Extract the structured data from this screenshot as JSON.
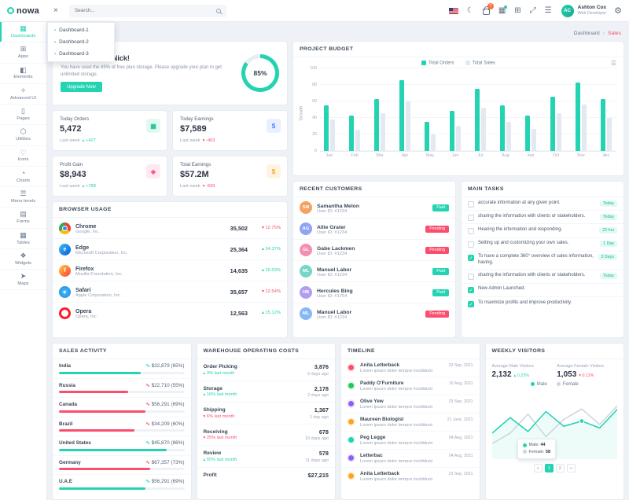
{
  "colors": {
    "accent": "#23d3b1",
    "danger": "#fb4d6d",
    "blue": "#4c84ff",
    "orange": "#ffa21d",
    "purple": "#8e5ff5",
    "green": "#22c55e"
  },
  "glyphs": {
    "close": "×",
    "menu": "☰",
    "chevron": "›",
    "up": "▴",
    "down": "▾",
    "trend": "∿",
    "check": "✓",
    "settings": "⚙"
  },
  "topbar": {
    "logo_text": "nowa",
    "search_placeholder": "Search...",
    "user_name": "Ashton Cox",
    "user_role": "Web Developer",
    "user_initials": "AC",
    "icons": [
      {
        "name": "us-flag-icon",
        "glyph": ""
      },
      {
        "name": "moon-icon",
        "glyph": "☾"
      },
      {
        "name": "cart-icon",
        "glyph": "",
        "badge": "7"
      },
      {
        "name": "grid-icon",
        "glyph": "▦",
        "dot": true
      },
      {
        "name": "apps-icon",
        "glyph": "⊞"
      },
      {
        "name": "fullscreen-icon",
        "glyph": "⤢"
      },
      {
        "name": "filter-icon",
        "glyph": "☰"
      }
    ]
  },
  "sidebar": {
    "items": [
      {
        "label": "Dashboards",
        "icon": "dashboard-icon",
        "glyph": "▦",
        "active": true
      },
      {
        "label": "Apps",
        "icon": "apps-icon",
        "glyph": "⊞",
        "active": false
      },
      {
        "label": "Elements",
        "icon": "elements-icon",
        "glyph": "◧",
        "active": false
      },
      {
        "label": "Advanced UI",
        "icon": "advanced-ui-icon",
        "glyph": "✧",
        "active": false
      },
      {
        "label": "Pages",
        "icon": "pages-icon",
        "glyph": "▯",
        "active": false
      },
      {
        "label": "Utilities",
        "icon": "utilities-icon",
        "glyph": "⬡",
        "active": false
      },
      {
        "label": "Icons",
        "icon": "icons-icon",
        "glyph": "♡",
        "active": false
      },
      {
        "label": "Charts",
        "icon": "charts-icon",
        "glyph": "◔",
        "active": false
      },
      {
        "label": "Menu-levels",
        "icon": "menu-levels-icon",
        "glyph": "☰",
        "active": false
      },
      {
        "label": "Forms",
        "icon": "forms-icon",
        "glyph": "▤",
        "active": false
      },
      {
        "label": "Tables",
        "icon": "tables-icon",
        "glyph": "▦",
        "active": false
      },
      {
        "label": "Widgets",
        "icon": "widgets-icon",
        "glyph": "❖",
        "active": false
      },
      {
        "label": "Maps",
        "icon": "maps-icon",
        "glyph": "➤",
        "active": false
      }
    ]
  },
  "dashboards_menu": {
    "items": [
      "Dashboard-1",
      "Dashboard-2",
      "Dashboard-3"
    ]
  },
  "breadcrumb": {
    "parent": "Dashboard",
    "current": "Sales"
  },
  "welcome": {
    "title": "Welcome Back Nick!",
    "body": "You have used the 85% of free plan storage. Please upgrade your plan to get unlimited storage.",
    "button": "Upgrade Now",
    "storage_pct": 85,
    "storage_label": "85%"
  },
  "stats": [
    {
      "title": "Today Orders",
      "value": "5,472",
      "period": "Last week",
      "change": "+427",
      "dir": "up",
      "icon": "calendar-icon",
      "glyph": "▦",
      "tint": "green"
    },
    {
      "title": "Today Earnings",
      "value": "$7,589",
      "period": "Last week",
      "change": "-453",
      "dir": "down",
      "icon": "dollar-icon",
      "glyph": "$",
      "tint": "blue"
    },
    {
      "title": "Profit Gain",
      "value": "$8,943",
      "period": "Last week",
      "change": "+788",
      "dir": "up",
      "icon": "wallet-icon",
      "glyph": "◆",
      "tint": "pink"
    },
    {
      "title": "Total Earnings",
      "value": "$57.2M",
      "period": "Last week",
      "change": "-693",
      "dir": "down",
      "icon": "money-icon",
      "glyph": "$",
      "tint": "orange"
    }
  ],
  "browser_usage": {
    "title": "BROWSER USAGE",
    "rows": [
      {
        "name": "Chrome",
        "company": "Google, Inc.",
        "value": "35,502",
        "change": "12.75%",
        "dir": "down"
      },
      {
        "name": "Edge",
        "company": "Microsoft Corporation, Inc.",
        "value": "25,364",
        "change": "24.37%",
        "dir": "up"
      },
      {
        "name": "Firefox",
        "company": "Mozilla Foundation, Inc.",
        "value": "14,635",
        "change": "15.63%",
        "dir": "up"
      },
      {
        "name": "Safari",
        "company": "Apple Corporation, Inc.",
        "value": "35,657",
        "change": "12.54%",
        "dir": "down"
      },
      {
        "name": "Opera",
        "company": "Opera, Inc.",
        "value": "12,563",
        "change": "15.12%",
        "dir": "up"
      }
    ]
  },
  "project_budget": {
    "title": "PROJECT BUDGET"
  },
  "recent_customers": {
    "title": "RECENT CUSTOMERS",
    "rows": [
      {
        "name": "Samantha Melon",
        "meta": "User ID: #1234",
        "status": "Paid",
        "initials": "SM"
      },
      {
        "name": "Allie Grater",
        "meta": "User ID: #1234",
        "status": "Pending",
        "initials": "AG"
      },
      {
        "name": "Gabe Lackmen",
        "meta": "User ID: #1234",
        "status": "Pending",
        "initials": "GL"
      },
      {
        "name": "Manuel Labor",
        "meta": "User ID: #1234",
        "status": "Paid",
        "initials": "ML"
      },
      {
        "name": "Hercules Bing",
        "meta": "User ID: #1754",
        "status": "Paid",
        "initials": "HB"
      },
      {
        "name": "Manuel Labor",
        "meta": "User ID: #1234",
        "status": "Pending",
        "initials": "ML"
      }
    ]
  },
  "main_tasks": {
    "title": "MAIN TASKS",
    "rows": [
      {
        "text": "accurate information at any given point.",
        "badge": "Today",
        "checked": false
      },
      {
        "text": "sharing the information with clients or stakeholders.",
        "badge": "Today",
        "checked": false
      },
      {
        "text": "Hearing the information and responding.",
        "badge": "22 hrs",
        "checked": false
      },
      {
        "text": "Setting up and customizing your own sales.",
        "badge": "1 Day",
        "checked": false
      },
      {
        "text": "To have a complete 360° overview of sales information, having.",
        "badge": "2 Days",
        "checked": true
      },
      {
        "text": "sharing the information with clients or stakeholders.",
        "badge": "Today",
        "checked": false
      },
      {
        "text": "New Admin Launched.",
        "badge": "",
        "checked": true
      },
      {
        "text": "To maximize profits and improve productivity.",
        "badge": "",
        "checked": true
      }
    ]
  },
  "sales_activity": {
    "title": "SALES ACTIVITY",
    "rows": [
      {
        "country": "India",
        "amount": "$32,879 (65%)",
        "pct": 65,
        "color": "teal"
      },
      {
        "country": "Russia",
        "amount": "$22,710 (55%)",
        "pct": 55,
        "color": "red"
      },
      {
        "country": "Canada",
        "amount": "$56,291 (69%)",
        "pct": 69,
        "color": "red"
      },
      {
        "country": "Brazil",
        "amount": "$34,209 (60%)",
        "pct": 60,
        "color": "red"
      },
      {
        "country": "United States",
        "amount": "$45,870 (86%)",
        "pct": 86,
        "color": "teal"
      },
      {
        "country": "Germany",
        "amount": "$67,357 (73%)",
        "pct": 73,
        "color": "red"
      },
      {
        "country": "U.A.E",
        "amount": "$56,291 (69%)",
        "pct": 69,
        "color": "teal"
      }
    ]
  },
  "warehouse": {
    "title": "WAREHOUSE OPERATING COSTS",
    "rows": [
      {
        "label": "Order Picking",
        "sub": "3% last month",
        "dir": "up",
        "value": "3,876",
        "ago": "5 days ago"
      },
      {
        "label": "Storage",
        "sub": "16% last month",
        "dir": "up",
        "value": "2,178",
        "ago": "2 days ago"
      },
      {
        "label": "Shipping",
        "sub": "6% last month",
        "dir": "down",
        "value": "1,367",
        "ago": "1 day ago"
      },
      {
        "label": "Receiving",
        "sub": "25% last month",
        "dir": "down",
        "value": "678",
        "ago": "10 days ago"
      },
      {
        "label": "Review",
        "sub": "55% last month",
        "dir": "up",
        "value": "578",
        "ago": "11 days ago"
      },
      {
        "label": "Profit",
        "sub": "",
        "dir": "up",
        "value": "$27,215",
        "ago": ""
      }
    ]
  },
  "timeline": {
    "title": "TIMELINE",
    "rows": [
      {
        "name": "Anita Letterback",
        "date": "23 Sep, 2021",
        "text": "Lorem ipsum dolor tempor incididunt",
        "color": "#fb4d6d"
      },
      {
        "name": "Paddy O'Furniture",
        "date": "16 Aug, 2021",
        "text": "Lorem ipsum dolor tempor incididunt",
        "color": "#22c55e"
      },
      {
        "name": "Olive Yew",
        "date": "23 Sep, 2021",
        "text": "Lorem ipsum dolor tempor incididunt",
        "color": "#8e5ff5"
      },
      {
        "name": "Maureen Biologist",
        "date": "21 June, 2021",
        "text": "Lorem ipsum dolor tempor incididunt",
        "color": "#ffa21d"
      },
      {
        "name": "Peg Legge",
        "date": "04 Aug, 2021",
        "text": "Lorem ipsum dolor tempor incididunt",
        "color": "#23d3b1"
      },
      {
        "name": "Letterbac",
        "date": "04 Aug, 2021",
        "text": "Lorem ipsum dolor tempor incididunt",
        "color": "#8e5ff5"
      },
      {
        "name": "Anita Letterback",
        "date": "23 Sep, 2021",
        "text": "Lorem ipsum dolor tempor incididunt",
        "color": "#ffa21d"
      }
    ]
  },
  "weekly_visitors": {
    "title": "WEEKLY VISITORS",
    "male_label": "Average Male Visitors",
    "male_value": "2,132",
    "male_change": "0.23%",
    "female_label": "Average Female Visitors",
    "female_value": "1,053",
    "female_change": "0.11%",
    "legend": [
      "Male",
      "Female"
    ],
    "tooltip": {
      "male_label": "Male:",
      "male_value": "44",
      "female_label": "Female:",
      "female_value": "58"
    },
    "pagination": {
      "prev": "«",
      "pages": [
        "1",
        "2"
      ],
      "active": "1",
      "next": "»"
    }
  },
  "chart_data": [
    {
      "id": "project-budget",
      "type": "bar",
      "title": "PROJECT BUDGET",
      "categories": [
        "Jan",
        "Feb",
        "Mar",
        "Apr",
        "May",
        "Jun",
        "Jul",
        "Aug",
        "sep",
        "Oct",
        "Nov",
        "dec"
      ],
      "series": [
        {
          "name": "Total Orders",
          "color": "#23d3b1",
          "values": [
            55,
            42,
            62,
            85,
            35,
            48,
            75,
            55,
            42,
            65,
            82,
            62
          ]
        },
        {
          "name": "Total Sales",
          "color": "#e3e9f0",
          "values": [
            38,
            25,
            45,
            60,
            20,
            30,
            52,
            35,
            26,
            45,
            56,
            40
          ]
        }
      ],
      "xlabel": "",
      "ylabel": "Growth",
      "ylim": [
        0,
        100
      ],
      "yticks": [
        0,
        20,
        40,
        60,
        80,
        100
      ],
      "grid": true,
      "legend_position": "top-center"
    },
    {
      "id": "weekly-visitors",
      "type": "line",
      "title": "WEEKLY VISITORS",
      "x": [
        1,
        2,
        3,
        4,
        5,
        6,
        7,
        8
      ],
      "series": [
        {
          "name": "Male",
          "color": "#23d3b1",
          "values": [
            30,
            48,
            32,
            55,
            38,
            44,
            36,
            58
          ]
        },
        {
          "name": "Female",
          "color": "#ccd6e0",
          "values": [
            18,
            30,
            52,
            26,
            46,
            58,
            40,
            62
          ]
        }
      ],
      "ylim": [
        0,
        80
      ],
      "grid": false,
      "legend_position": "top-center"
    }
  ]
}
